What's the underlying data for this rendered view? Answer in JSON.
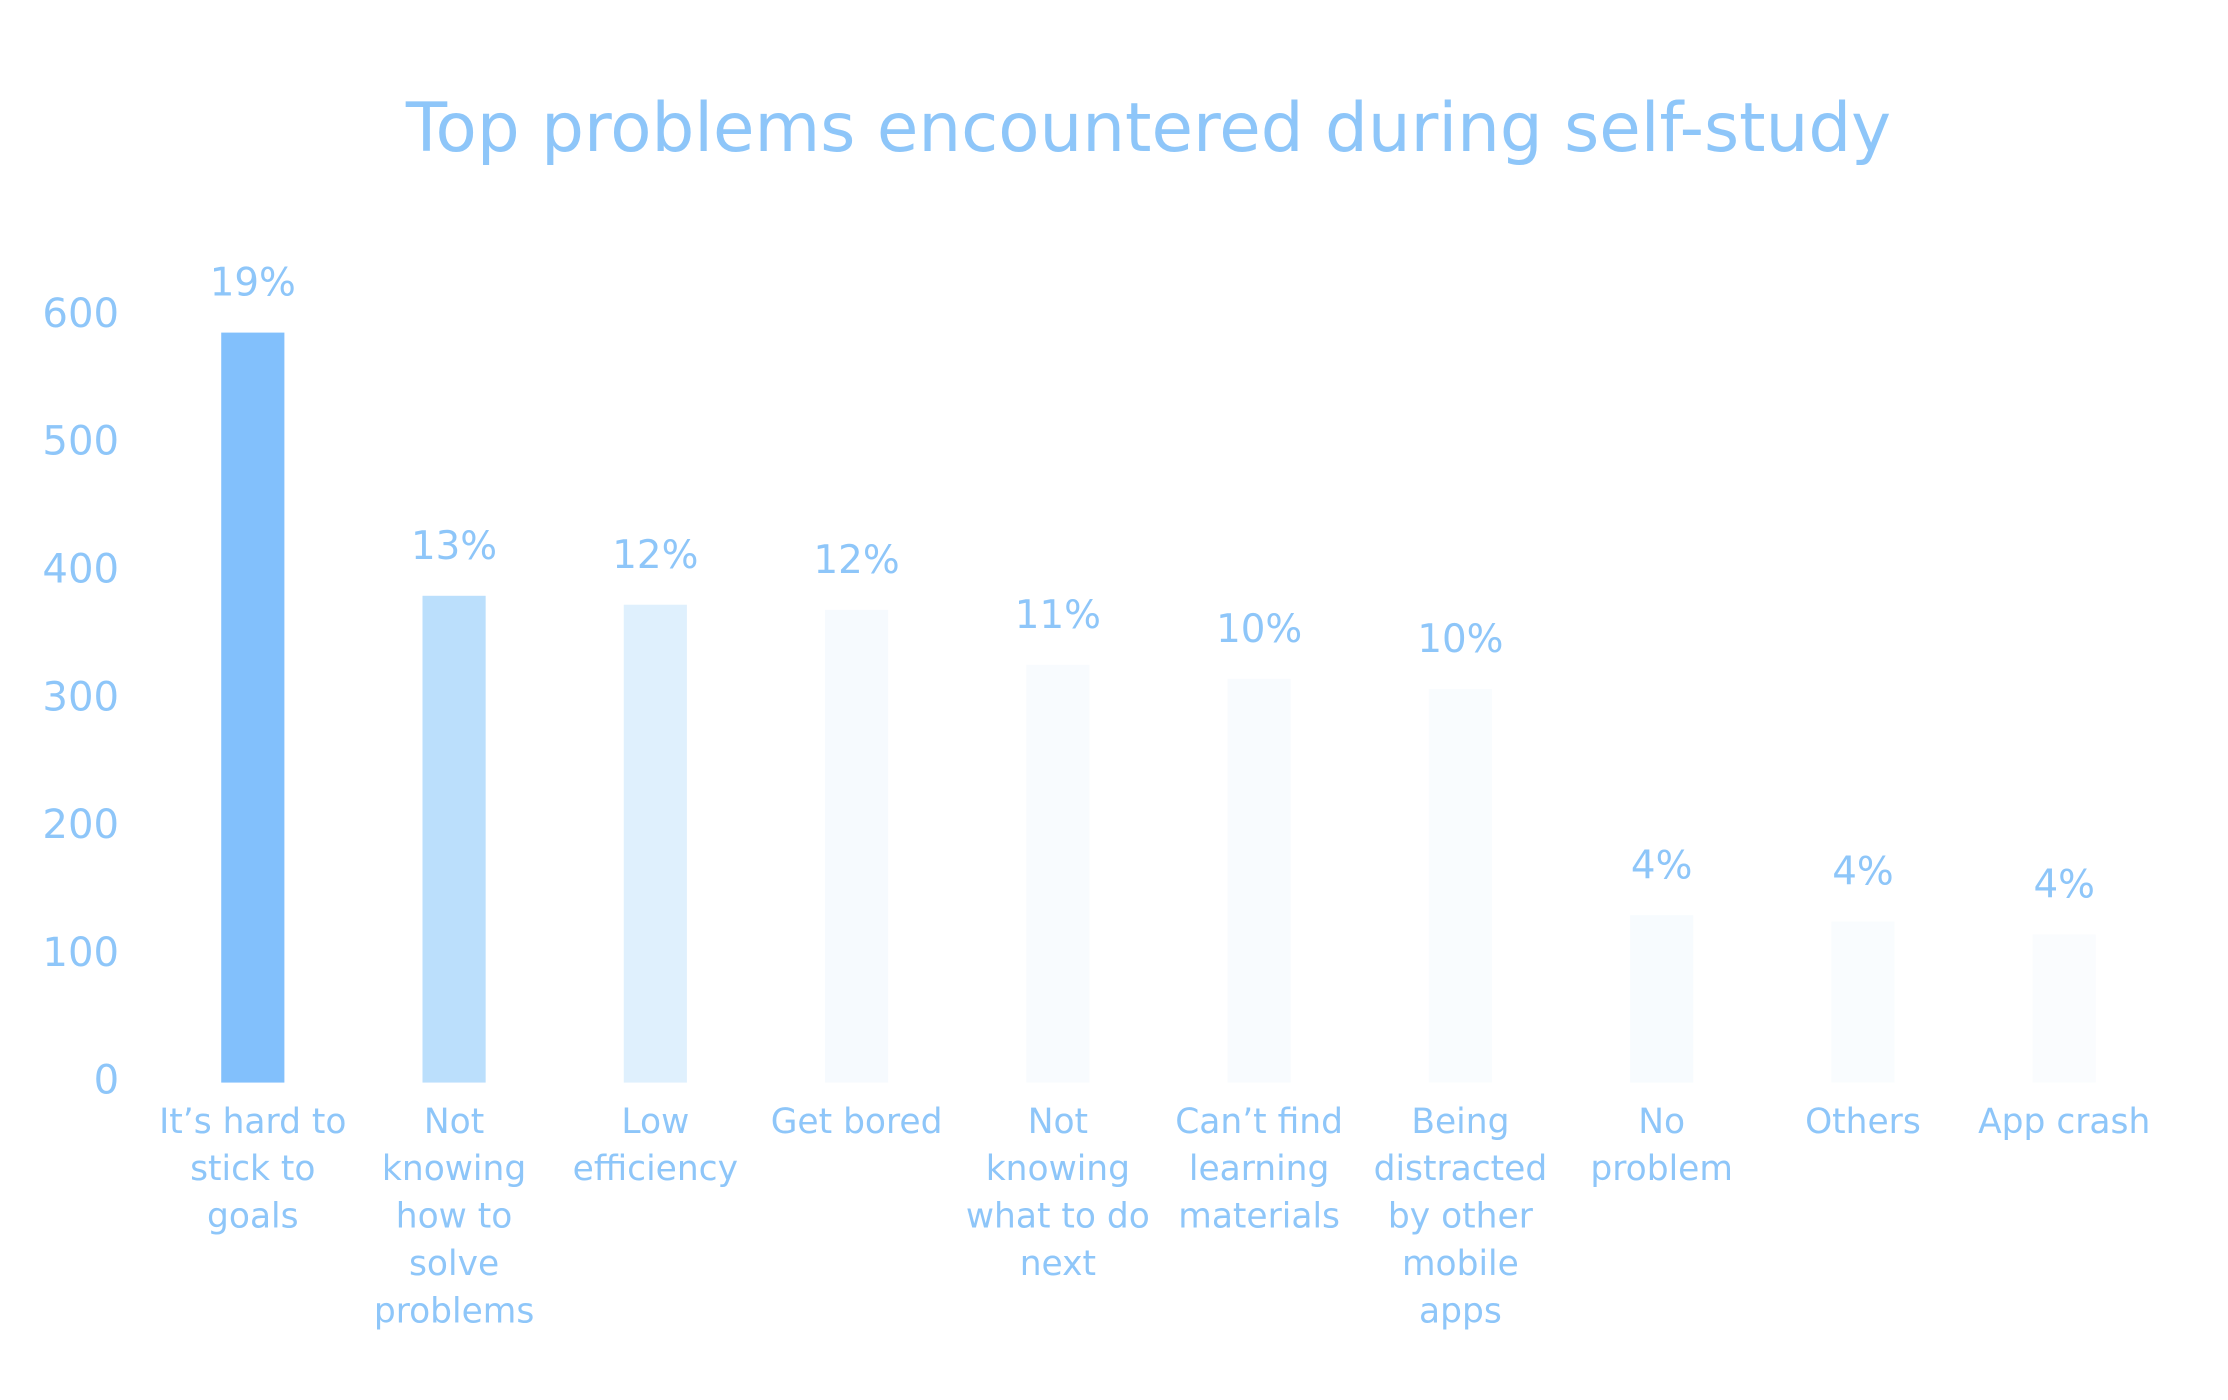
{
  "chart_data": {
    "type": "bar",
    "title": "Top problems encountered during self-study",
    "categories": [
      "It’s hard to\nstick to\ngoals",
      "Not\nknowing\nhow to\nsolve\nproblems",
      "Low\nefficiency",
      "Get bored",
      "Not\nknowing\nwhat to do\nnext",
      "Can’t find\nlearning\nmaterials",
      "Being\ndistracted\nby other\nmobile\napps",
      "No\nproblem",
      "Others",
      "App crash"
    ],
    "values": [
      587,
      381,
      374,
      370,
      327,
      316,
      308,
      131,
      126,
      116
    ],
    "value_labels": [
      "19%",
      "13%",
      "12%",
      "12%",
      "11%",
      "10%",
      "10%",
      "4%",
      "4%",
      "4%"
    ],
    "colors": [
      "#82c0fc",
      "#bbdffc",
      "#dff0fd",
      "#f6fafe",
      "#f8fbfe",
      "#f8fbfe",
      "#f9fcfe",
      "#f7fbfe",
      "#f9fcfe",
      "#fafcfe"
    ],
    "ylim": [
      0,
      600
    ],
    "yticks": [
      0,
      100,
      200,
      300,
      400,
      500,
      600
    ],
    "grid": false
  }
}
